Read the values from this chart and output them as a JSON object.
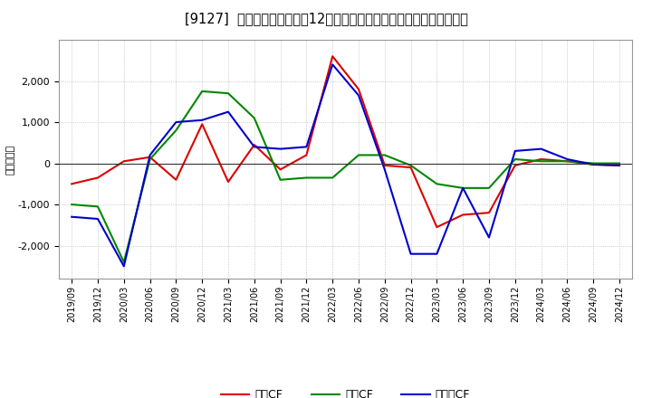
{
  "title": "[9127]  キャッシュフローの12か月移動合計の対前年同期増減額の推移",
  "ylabel": "（百万円）",
  "background_color": "#ffffff",
  "plot_background": "#ffffff",
  "grid_color": "#bbbbbb",
  "x_labels": [
    "2019/09",
    "2019/12",
    "2020/03",
    "2020/06",
    "2020/09",
    "2020/12",
    "2021/03",
    "2021/06",
    "2021/09",
    "2021/12",
    "2022/03",
    "2022/06",
    "2022/09",
    "2022/12",
    "2023/03",
    "2023/06",
    "2023/09",
    "2023/12",
    "2024/03",
    "2024/06",
    "2024/09",
    "2024/12"
  ],
  "operating_cf": [
    -500,
    -350,
    50,
    150,
    -400,
    950,
    -450,
    450,
    -150,
    200,
    2600,
    1800,
    -50,
    -100,
    -1550,
    -1250,
    -1200,
    -50,
    100,
    50,
    -30,
    -50
  ],
  "investing_cf": [
    -1000,
    -1050,
    -2400,
    100,
    800,
    1750,
    1700,
    1100,
    -400,
    -350,
    -350,
    200,
    200,
    -50,
    -500,
    -600,
    -600,
    100,
    50,
    50,
    0,
    0
  ],
  "free_cf": [
    -1300,
    -1350,
    -2500,
    200,
    1000,
    1050,
    1250,
    400,
    350,
    400,
    2400,
    1650,
    -150,
    -2200,
    -2200,
    -600,
    -1800,
    300,
    350,
    100,
    -30,
    -50
  ],
  "operating_color": "#dd0000",
  "investing_color": "#008800",
  "free_color": "#0000cc",
  "legend_labels": [
    "営業CF",
    "投資CF",
    "フリーCF"
  ],
  "ylim": [
    -2800,
    3000
  ],
  "yticks": [
    -2000,
    -1000,
    0,
    1000,
    2000
  ]
}
